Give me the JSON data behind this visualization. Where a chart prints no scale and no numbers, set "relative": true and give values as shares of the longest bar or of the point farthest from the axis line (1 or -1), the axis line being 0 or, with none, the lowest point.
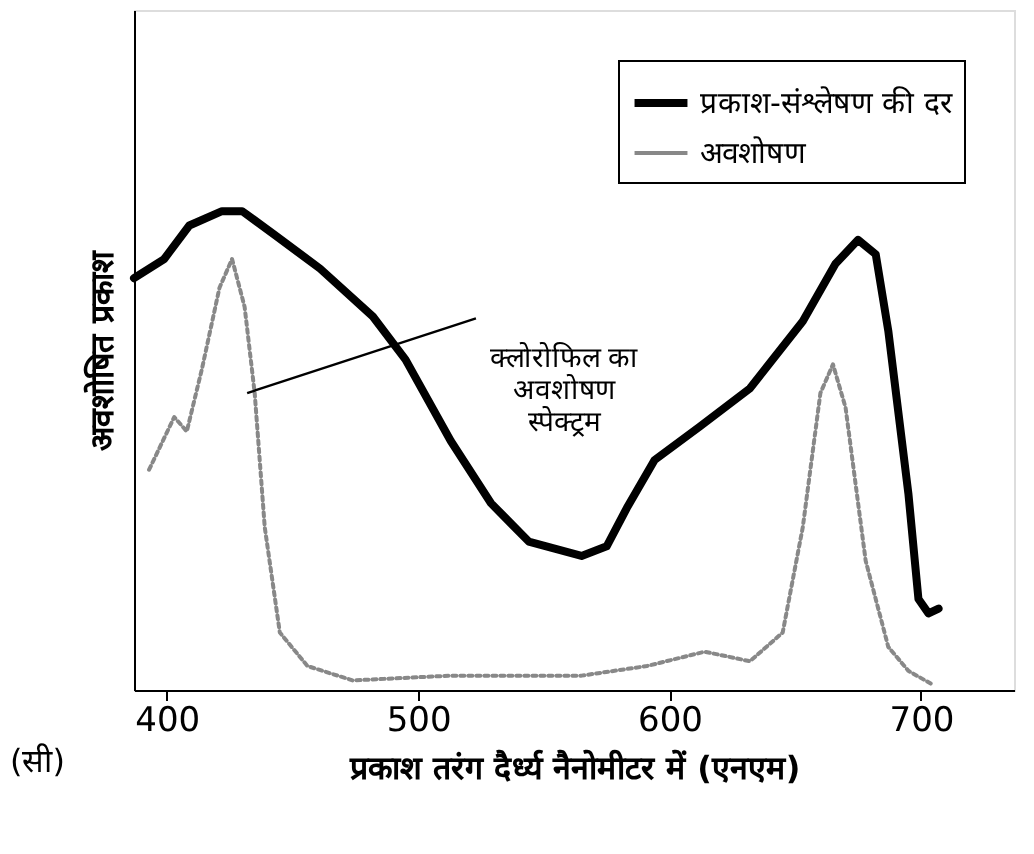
{
  "chart_data": {
    "type": "line",
    "relative": true,
    "xlabel": "प्रकाश तरंग दैर्ध्य नैनोमीटर में (एनएम)",
    "ylabel": "अवशोषित प्रकाश",
    "xlim": [
      387,
      737
    ],
    "xticks": [
      400,
      500,
      600,
      700
    ],
    "grid": false,
    "legend": "top right",
    "annotations": [
      "(सी)",
      {
        "text": "क्लोरोफिल का\nअवशोषण\nस्पेक्ट्रम",
        "x": 432,
        "y": 0.62
      }
    ],
    "series": [
      {
        "name": "प्रकाश-संश्लेषण की दर",
        "color": "#000000",
        "line_style": "solid",
        "x": [
          387,
          399,
          409,
          422,
          430,
          443,
          461,
          482,
          495,
          513,
          529,
          544,
          565,
          575,
          583,
          594,
          612,
          632,
          653,
          666,
          675,
          682,
          687,
          695,
          699,
          703,
          707
        ],
        "values": [
          0.86,
          0.9,
          0.97,
          1.0,
          1.0,
          0.95,
          0.88,
          0.78,
          0.69,
          0.52,
          0.39,
          0.31,
          0.28,
          0.3,
          0.38,
          0.48,
          0.55,
          0.63,
          0.77,
          0.89,
          0.94,
          0.91,
          0.75,
          0.41,
          0.19,
          0.16,
          0.17
        ]
      },
      {
        "name": "अवशोषण",
        "color": "#888888",
        "line_style": "dotted",
        "x": [
          393,
          403,
          408,
          414,
          421,
          426,
          431,
          435,
          439,
          445,
          456,
          474,
          513,
          565,
          591,
          614,
          632,
          645,
          653,
          660,
          665,
          670,
          678,
          687,
          695,
          705
        ],
        "values": [
          0.46,
          0.57,
          0.54,
          0.67,
          0.84,
          0.9,
          0.8,
          0.62,
          0.34,
          0.12,
          0.05,
          0.02,
          0.03,
          0.03,
          0.05,
          0.08,
          0.06,
          0.12,
          0.34,
          0.62,
          0.68,
          0.59,
          0.27,
          0.09,
          0.04,
          0.01
        ]
      }
    ]
  }
}
